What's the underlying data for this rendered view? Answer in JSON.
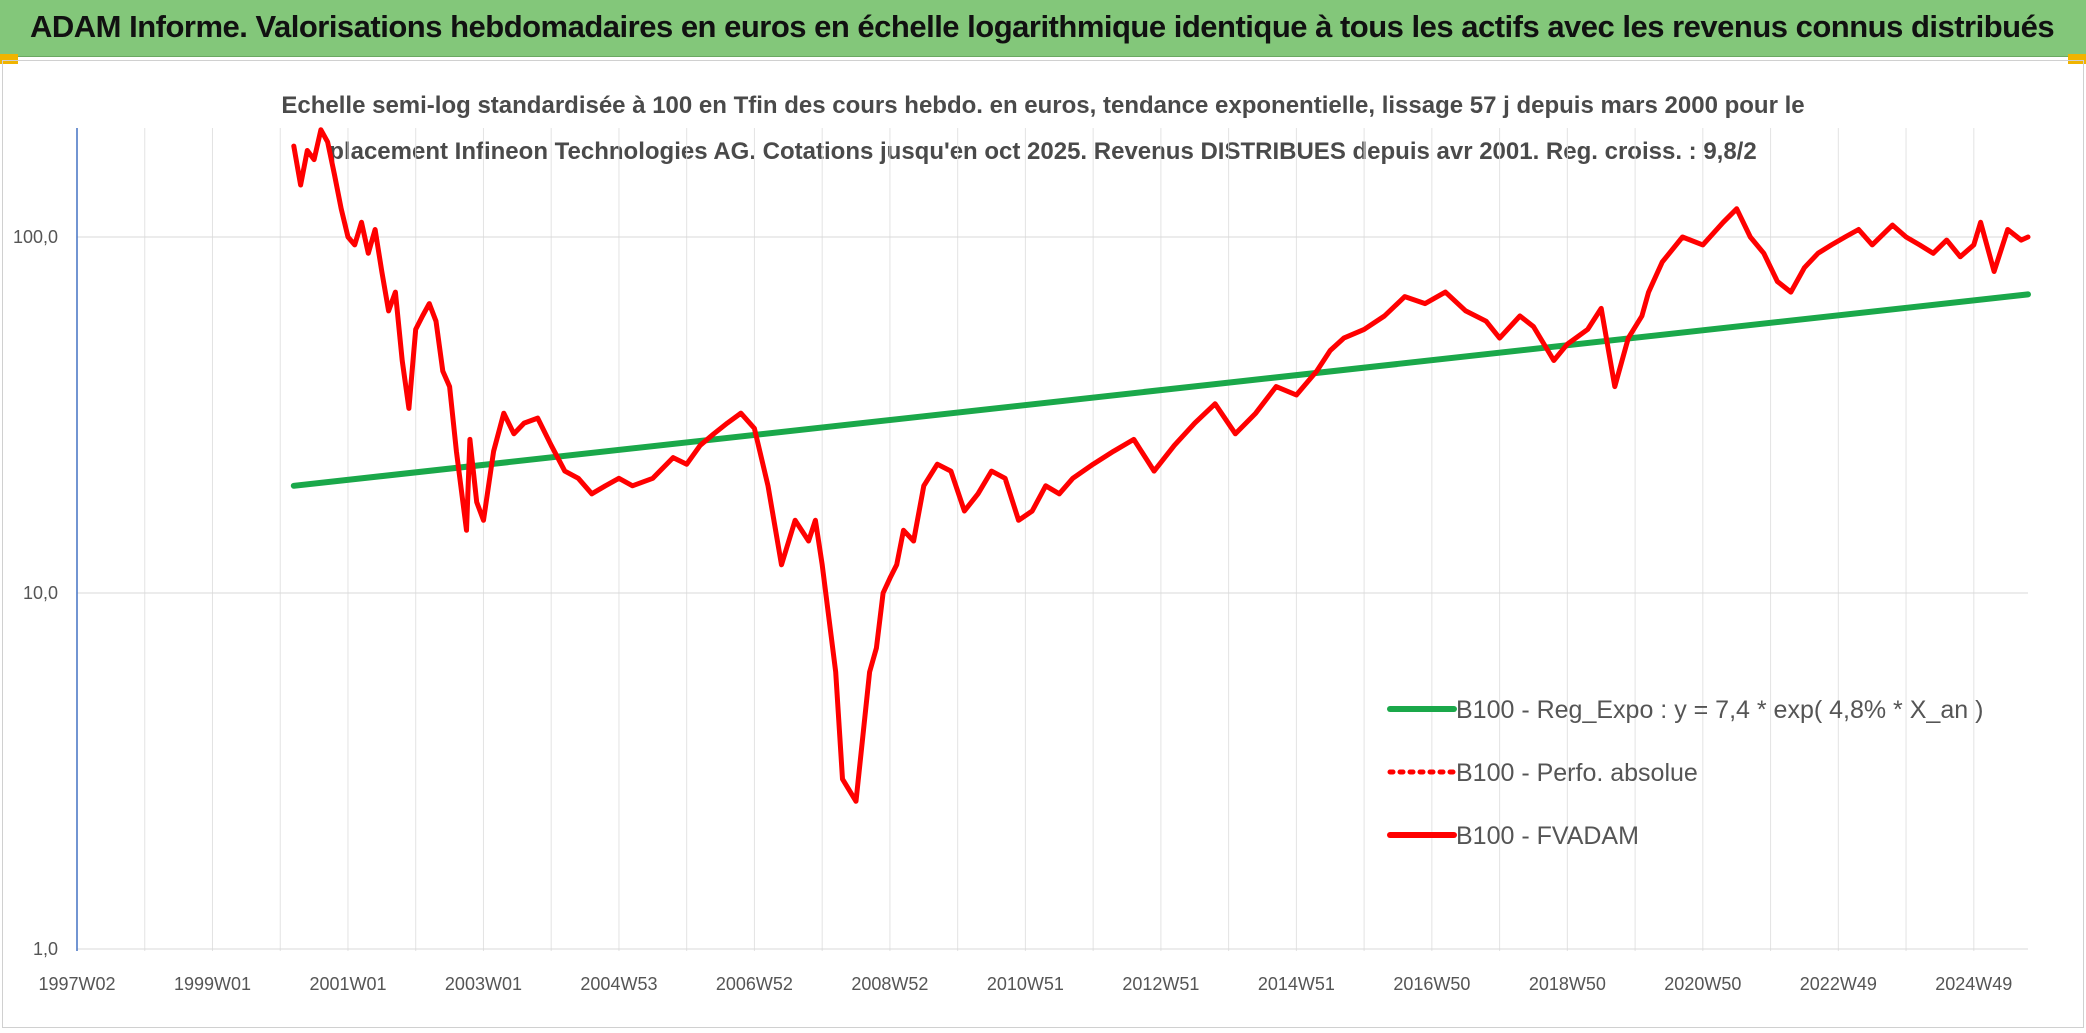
{
  "header": {
    "title": "ADAM Informe. Valorisations hebdomadaires en euros en échelle logarithmique identique à tous les actifs avec les revenus connus distribués"
  },
  "chart_data": {
    "type": "line",
    "subtitle_line1": "Echelle semi-log standardisée à 100 en Tfin des cours hebdo. en euros, tendance exponentielle, lissage 57 j depuis mars 2000 pour le",
    "subtitle_line2": "placement Infineon Technologies AG. Cotations jusqu'en oct 2025. Revenus DISTRIBUES depuis avr 2001. Reg. croiss. : 9,8/2",
    "y_scale": "log",
    "ylim": [
      1,
      200
    ],
    "y_ticks": [
      "1,0",
      "10,0",
      "100,0"
    ],
    "y_tick_values": [
      1,
      10,
      100
    ],
    "xlim": [
      1997.0,
      2025.8
    ],
    "x_ticks": [
      "1997W02",
      "1999W01",
      "2001W01",
      "2003W01",
      "2004W53",
      "2006W52",
      "2008W52",
      "2010W51",
      "2012W51",
      "2014W51",
      "2016W50",
      "2018W50",
      "2020W50",
      "2022W49",
      "2024W49"
    ],
    "x_tick_values": [
      1997.0,
      1999.0,
      2001.0,
      2003.0,
      2005.0,
      2007.0,
      2009.0,
      2011.0,
      2013.0,
      2015.0,
      2017.0,
      2019.0,
      2021.0,
      2023.0,
      2025.0
    ],
    "grid": true,
    "legend_position": "bottom-right",
    "series": [
      {
        "name": "B100 - Reg_Expo : y = 7,4 * exp( 4,8% *  X_an )",
        "color": "#1aa84a",
        "style": "solid",
        "x": [
          2000.2,
          2025.8
        ],
        "y": [
          20,
          69
        ]
      },
      {
        "name": "B100 - Perfo. absolue",
        "color": "#ff0000",
        "style": "dotted",
        "x": [],
        "y": []
      },
      {
        "name": "B100 - FVADAM",
        "color": "#ff0000",
        "style": "solid",
        "x": [
          2000.2,
          2000.3,
          2000.4,
          2000.5,
          2000.6,
          2000.7,
          2000.8,
          2000.9,
          2001.0,
          2001.1,
          2001.2,
          2001.3,
          2001.4,
          2001.5,
          2001.6,
          2001.7,
          2001.8,
          2001.9,
          2002.0,
          2002.1,
          2002.2,
          2002.3,
          2002.4,
          2002.5,
          2002.6,
          2002.75,
          2002.8,
          2002.9,
          2003.0,
          2003.15,
          2003.3,
          2003.45,
          2003.6,
          2003.8,
          2004.0,
          2004.2,
          2004.4,
          2004.6,
          2004.8,
          2005.0,
          2005.2,
          2005.5,
          2005.8,
          2006.0,
          2006.2,
          2006.4,
          2006.6,
          2006.8,
          2007.0,
          2007.2,
          2007.4,
          2007.6,
          2007.8,
          2007.9,
          2008.0,
          2008.2,
          2008.3,
          2008.5,
          2008.7,
          2008.8,
          2008.9,
          2009.0,
          2009.1,
          2009.2,
          2009.35,
          2009.5,
          2009.7,
          2009.9,
          2010.1,
          2010.3,
          2010.5,
          2010.7,
          2010.9,
          2011.1,
          2011.3,
          2011.5,
          2011.7,
          2012.0,
          2012.3,
          2012.6,
          2012.9,
          2013.2,
          2013.5,
          2013.8,
          2014.1,
          2014.4,
          2014.7,
          2015.0,
          2015.3,
          2015.5,
          2015.7,
          2016.0,
          2016.3,
          2016.6,
          2016.9,
          2017.2,
          2017.5,
          2017.8,
          2018.0,
          2018.3,
          2018.5,
          2018.8,
          2019.0,
          2019.3,
          2019.5,
          2019.7,
          2019.9,
          2020.1,
          2020.2,
          2020.4,
          2020.7,
          2021.0,
          2021.3,
          2021.5,
          2021.7,
          2021.9,
          2022.1,
          2022.3,
          2022.5,
          2022.7,
          2022.9,
          2023.1,
          2023.3,
          2023.5,
          2023.8,
          2024.0,
          2024.2,
          2024.4,
          2024.6,
          2024.8,
          2025.0,
          2025.1,
          2025.3,
          2025.5,
          2025.7,
          2025.8
        ],
        "y": [
          180,
          140,
          175,
          165,
          200,
          185,
          150,
          120,
          100,
          95,
          110,
          90,
          105,
          80,
          62,
          70,
          45,
          33,
          55,
          60,
          65,
          58,
          42,
          38,
          25,
          15,
          27,
          18,
          16,
          25,
          32,
          28,
          30,
          31,
          26,
          22,
          21,
          19,
          20,
          21,
          20,
          21,
          24,
          23,
          26,
          28,
          30,
          32,
          29,
          20,
          12,
          16,
          14,
          16,
          12,
          6,
          3,
          2.6,
          6,
          7,
          10,
          11,
          12,
          15,
          14,
          20,
          23,
          22,
          17,
          19,
          22,
          21,
          16,
          17,
          20,
          19,
          21,
          23,
          25,
          27,
          22,
          26,
          30,
          34,
          28,
          32,
          38,
          36,
          42,
          48,
          52,
          55,
          60,
          68,
          65,
          70,
          62,
          58,
          52,
          60,
          56,
          45,
          50,
          55,
          63,
          38,
          52,
          60,
          70,
          85,
          100,
          95,
          110,
          120,
          100,
          90,
          75,
          70,
          82,
          90,
          95,
          100,
          105,
          95,
          108,
          100,
          95,
          90,
          98,
          88,
          95,
          110,
          80,
          105,
          98,
          100
        ]
      }
    ]
  }
}
